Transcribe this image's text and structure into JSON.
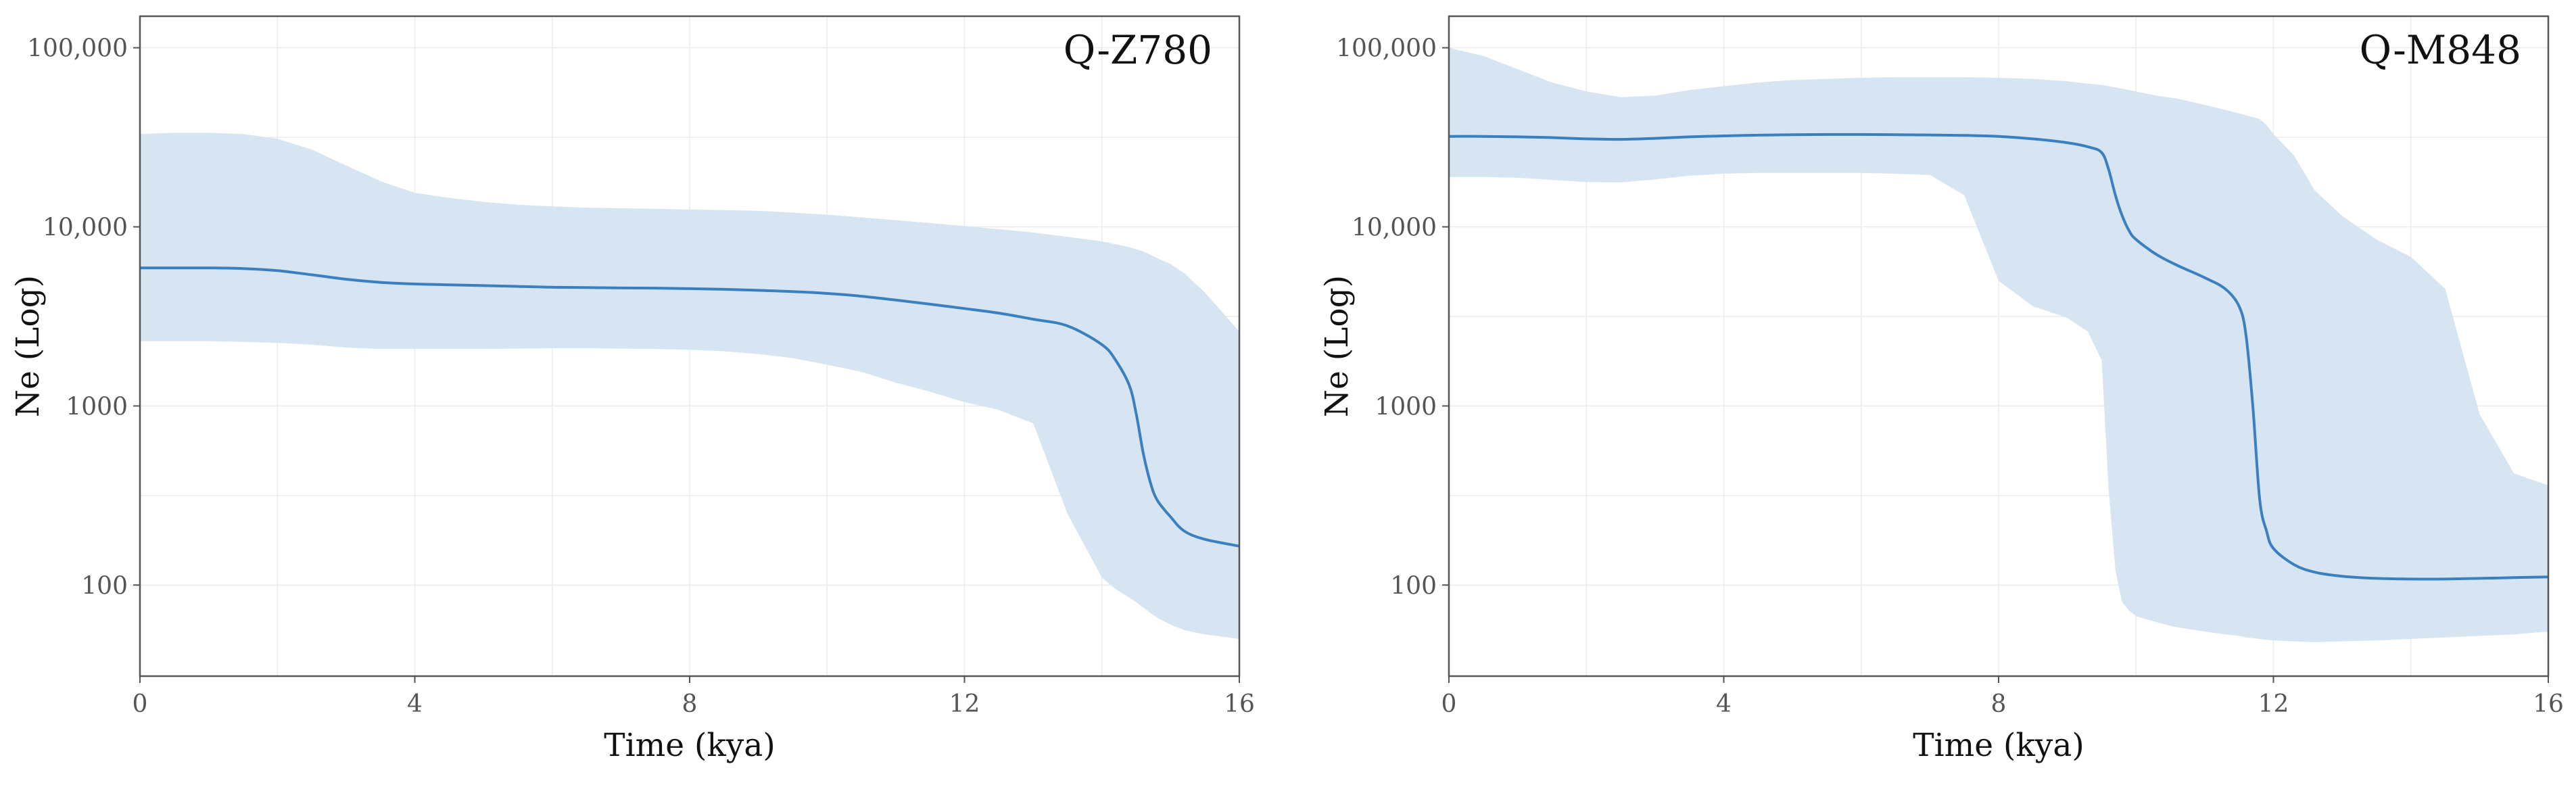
{
  "colors": {
    "line": "#3a7fc0",
    "band": "#d6e5f1",
    "grid": "#ececec",
    "frame": "#555555"
  },
  "chart_data": [
    {
      "type": "line",
      "title": "Q-Z780",
      "xlabel": "Time (kya)",
      "ylabel": "Ne (Log)",
      "xlim": [
        0,
        16
      ],
      "ylim": [
        31,
        150000
      ],
      "yscale": "log",
      "xticks": [
        0,
        4,
        8,
        12,
        16
      ],
      "yticks": [
        100,
        1000,
        10000,
        100000
      ],
      "ytick_labels": [
        "100",
        "1000",
        "10,000",
        "100,000"
      ],
      "grid": true,
      "x": [
        0,
        0.5,
        1,
        1.5,
        2,
        2.5,
        3,
        3.5,
        4,
        4.5,
        5,
        5.5,
        6,
        6.5,
        7,
        7.5,
        8,
        8.5,
        9,
        9.5,
        10,
        10.5,
        11,
        11.5,
        12,
        12.5,
        13,
        13.5,
        14,
        14.2,
        14.4,
        14.5,
        14.6,
        14.7,
        14.8,
        15,
        15.2,
        15.5,
        16
      ],
      "median": [
        5900,
        5900,
        5900,
        5850,
        5700,
        5400,
        5100,
        4900,
        4800,
        4750,
        4700,
        4650,
        4600,
        4580,
        4560,
        4550,
        4520,
        4480,
        4420,
        4350,
        4250,
        4100,
        3900,
        3700,
        3500,
        3300,
        3050,
        2800,
        2200,
        1800,
        1300,
        900,
        550,
        380,
        300,
        240,
        200,
        180,
        165
      ],
      "upper": [
        33000,
        33500,
        33500,
        33000,
        31000,
        27000,
        22000,
        18000,
        15500,
        14500,
        13800,
        13300,
        13000,
        12800,
        12700,
        12600,
        12500,
        12400,
        12300,
        12000,
        11700,
        11300,
        10900,
        10500,
        10100,
        9700,
        9300,
        8800,
        8300,
        8000,
        7700,
        7500,
        7300,
        7000,
        6700,
        6200,
        5500,
        4300,
        2600
      ],
      "lower": [
        2300,
        2300,
        2300,
        2280,
        2250,
        2200,
        2120,
        2080,
        2080,
        2080,
        2080,
        2090,
        2100,
        2100,
        2090,
        2080,
        2060,
        2020,
        1950,
        1850,
        1700,
        1550,
        1350,
        1200,
        1050,
        950,
        800,
        250,
        110,
        95,
        85,
        80,
        75,
        70,
        66,
        60,
        56,
        53,
        50
      ]
    },
    {
      "type": "line",
      "title": "Q-M848",
      "xlabel": "Time (kya)",
      "ylabel": "Ne (Log)",
      "xlim": [
        0,
        16
      ],
      "ylim": [
        31,
        150000
      ],
      "yscale": "log",
      "xticks": [
        0,
        4,
        8,
        12,
        16
      ],
      "yticks": [
        100,
        1000,
        10000,
        100000
      ],
      "ytick_labels": [
        "100",
        "1000",
        "10,000",
        "100,000"
      ],
      "grid": true,
      "x": [
        0,
        0.5,
        1,
        1.5,
        2,
        2.5,
        3,
        3.5,
        4,
        4.5,
        5,
        5.5,
        6,
        6.5,
        7,
        7.5,
        8,
        8.5,
        9,
        9.3,
        9.5,
        9.6,
        9.7,
        9.8,
        9.9,
        10,
        10.3,
        10.6,
        11,
        11.3,
        11.5,
        11.6,
        11.7,
        11.8,
        11.9,
        12,
        12.3,
        12.6,
        13,
        13.5,
        14,
        14.5,
        15,
        15.5,
        16
      ],
      "median": [
        32000,
        32000,
        31800,
        31500,
        31000,
        30800,
        31200,
        31800,
        32200,
        32500,
        32700,
        32800,
        32800,
        32700,
        32600,
        32400,
        32000,
        31000,
        29500,
        28000,
        26000,
        21000,
        15000,
        11500,
        9500,
        8500,
        7000,
        6100,
        5200,
        4500,
        3600,
        2500,
        1000,
        300,
        200,
        160,
        130,
        118,
        112,
        109,
        108,
        108,
        109,
        110,
        111
      ],
      "upper": [
        100000,
        90000,
        76000,
        64000,
        57000,
        53000,
        54000,
        58000,
        61000,
        64000,
        66000,
        67000,
        68000,
        68500,
        68500,
        68500,
        68000,
        67000,
        65000,
        63000,
        62000,
        61000,
        60000,
        59000,
        58000,
        57000,
        54000,
        52000,
        48000,
        45000,
        43000,
        42000,
        41000,
        40000,
        37000,
        33000,
        25000,
        16000,
        11500,
        8500,
        6800,
        4500,
        900,
        420,
        360
      ],
      "lower": [
        19000,
        19000,
        18800,
        18300,
        17800,
        17700,
        18400,
        19300,
        19800,
        20000,
        20000,
        20000,
        20000,
        19800,
        19500,
        15000,
        5000,
        3600,
        3100,
        2600,
        1800,
        350,
        120,
        80,
        72,
        67,
        62,
        58,
        55,
        53,
        52,
        51,
        50.5,
        50,
        49.5,
        49,
        48.5,
        48,
        48.5,
        49,
        50,
        51,
        52,
        53,
        55
      ]
    }
  ]
}
